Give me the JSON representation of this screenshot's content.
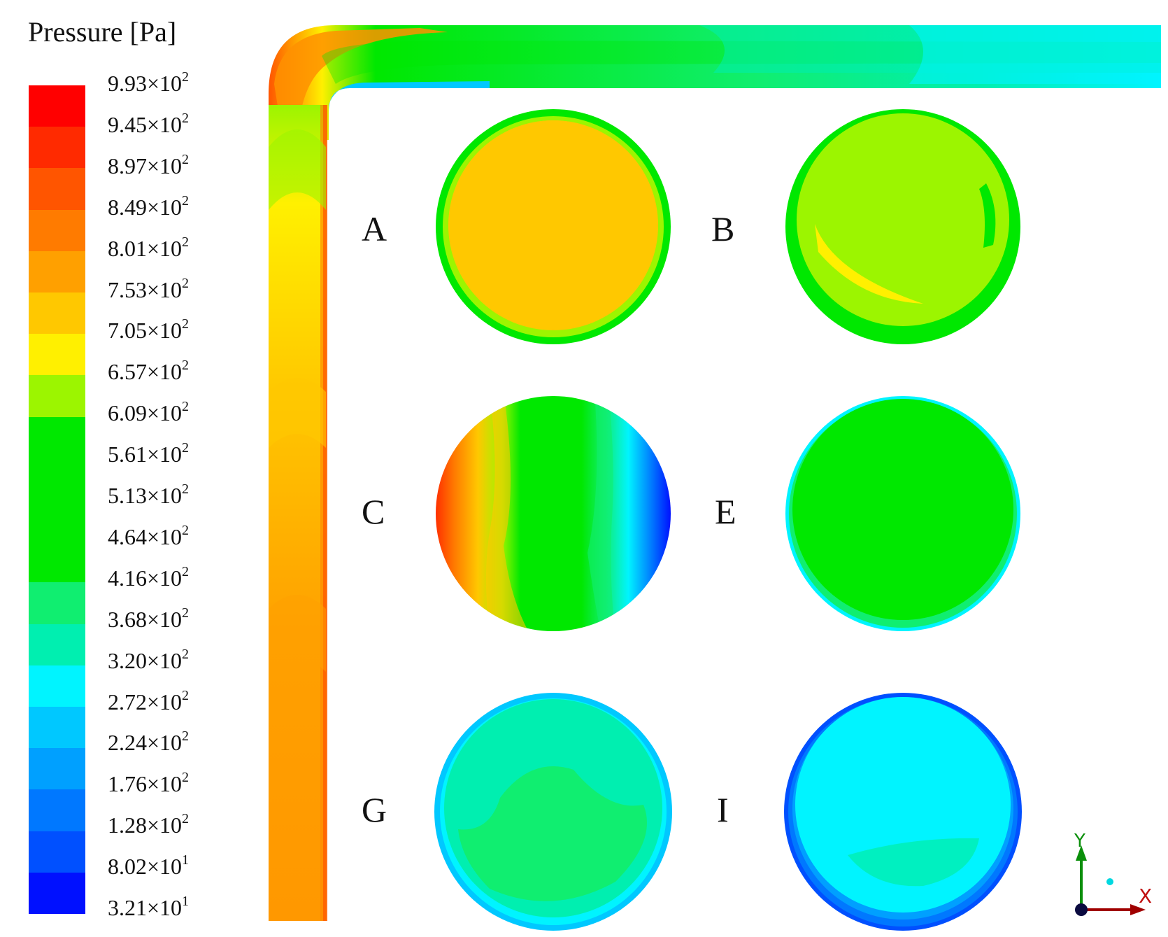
{
  "legend": {
    "title": "Pressure [Pa]",
    "ticks": [
      {
        "m": "9.93",
        "e": "2"
      },
      {
        "m": "9.45",
        "e": "2"
      },
      {
        "m": "8.97",
        "e": "2"
      },
      {
        "m": "8.49",
        "e": "2"
      },
      {
        "m": "8.01",
        "e": "2"
      },
      {
        "m": "7.53",
        "e": "2"
      },
      {
        "m": "7.05",
        "e": "2"
      },
      {
        "m": "6.57",
        "e": "2"
      },
      {
        "m": "6.09",
        "e": "2"
      },
      {
        "m": "5.61",
        "e": "2"
      },
      {
        "m": "5.13",
        "e": "2"
      },
      {
        "m": "4.64",
        "e": "2"
      },
      {
        "m": "4.16",
        "e": "2"
      },
      {
        "m": "3.68",
        "e": "2"
      },
      {
        "m": "3.20",
        "e": "2"
      },
      {
        "m": "2.72",
        "e": "2"
      },
      {
        "m": "2.24",
        "e": "2"
      },
      {
        "m": "1.76",
        "e": "2"
      },
      {
        "m": "1.28",
        "e": "2"
      },
      {
        "m": "8.02",
        "e": "1"
      },
      {
        "m": "3.21",
        "e": "1"
      }
    ],
    "colors": [
      "#ff0000",
      "#ff2a00",
      "#ff5500",
      "#ff7b00",
      "#ffa000",
      "#ffc800",
      "#fff000",
      "#9cf500",
      "#00e800",
      "#00e800",
      "#00e800",
      "#00e800",
      "#10ee70",
      "#00efb0",
      "#00f4ff",
      "#00c8ff",
      "#00a0ff",
      "#0078ff",
      "#0050ff",
      "#0010ff"
    ]
  },
  "sections": [
    {
      "label": "A",
      "fill": "#ffc800",
      "rim": "#00e800",
      "rim2": "#9cf500"
    },
    {
      "label": "B",
      "fill": "#9cf500",
      "rim": "#00e800",
      "rim2": "#2fe200"
    },
    {
      "label": "C",
      "fill": "#00e800",
      "rim": "#00e800",
      "rim2": "#00e800"
    },
    {
      "label": "E",
      "fill": "#00e800",
      "rim": "#00f4ff",
      "rim2": "#10ee70"
    },
    {
      "label": "G",
      "fill": "#00efb0",
      "rim": "#00c8ff",
      "rim2": "#00f4ff"
    },
    {
      "label": "I",
      "fill": "#00f4ff",
      "rim": "#0050ff",
      "rim2": "#00a0ff"
    }
  ],
  "axes": {
    "y_label": "Y",
    "x_label": "X"
  }
}
